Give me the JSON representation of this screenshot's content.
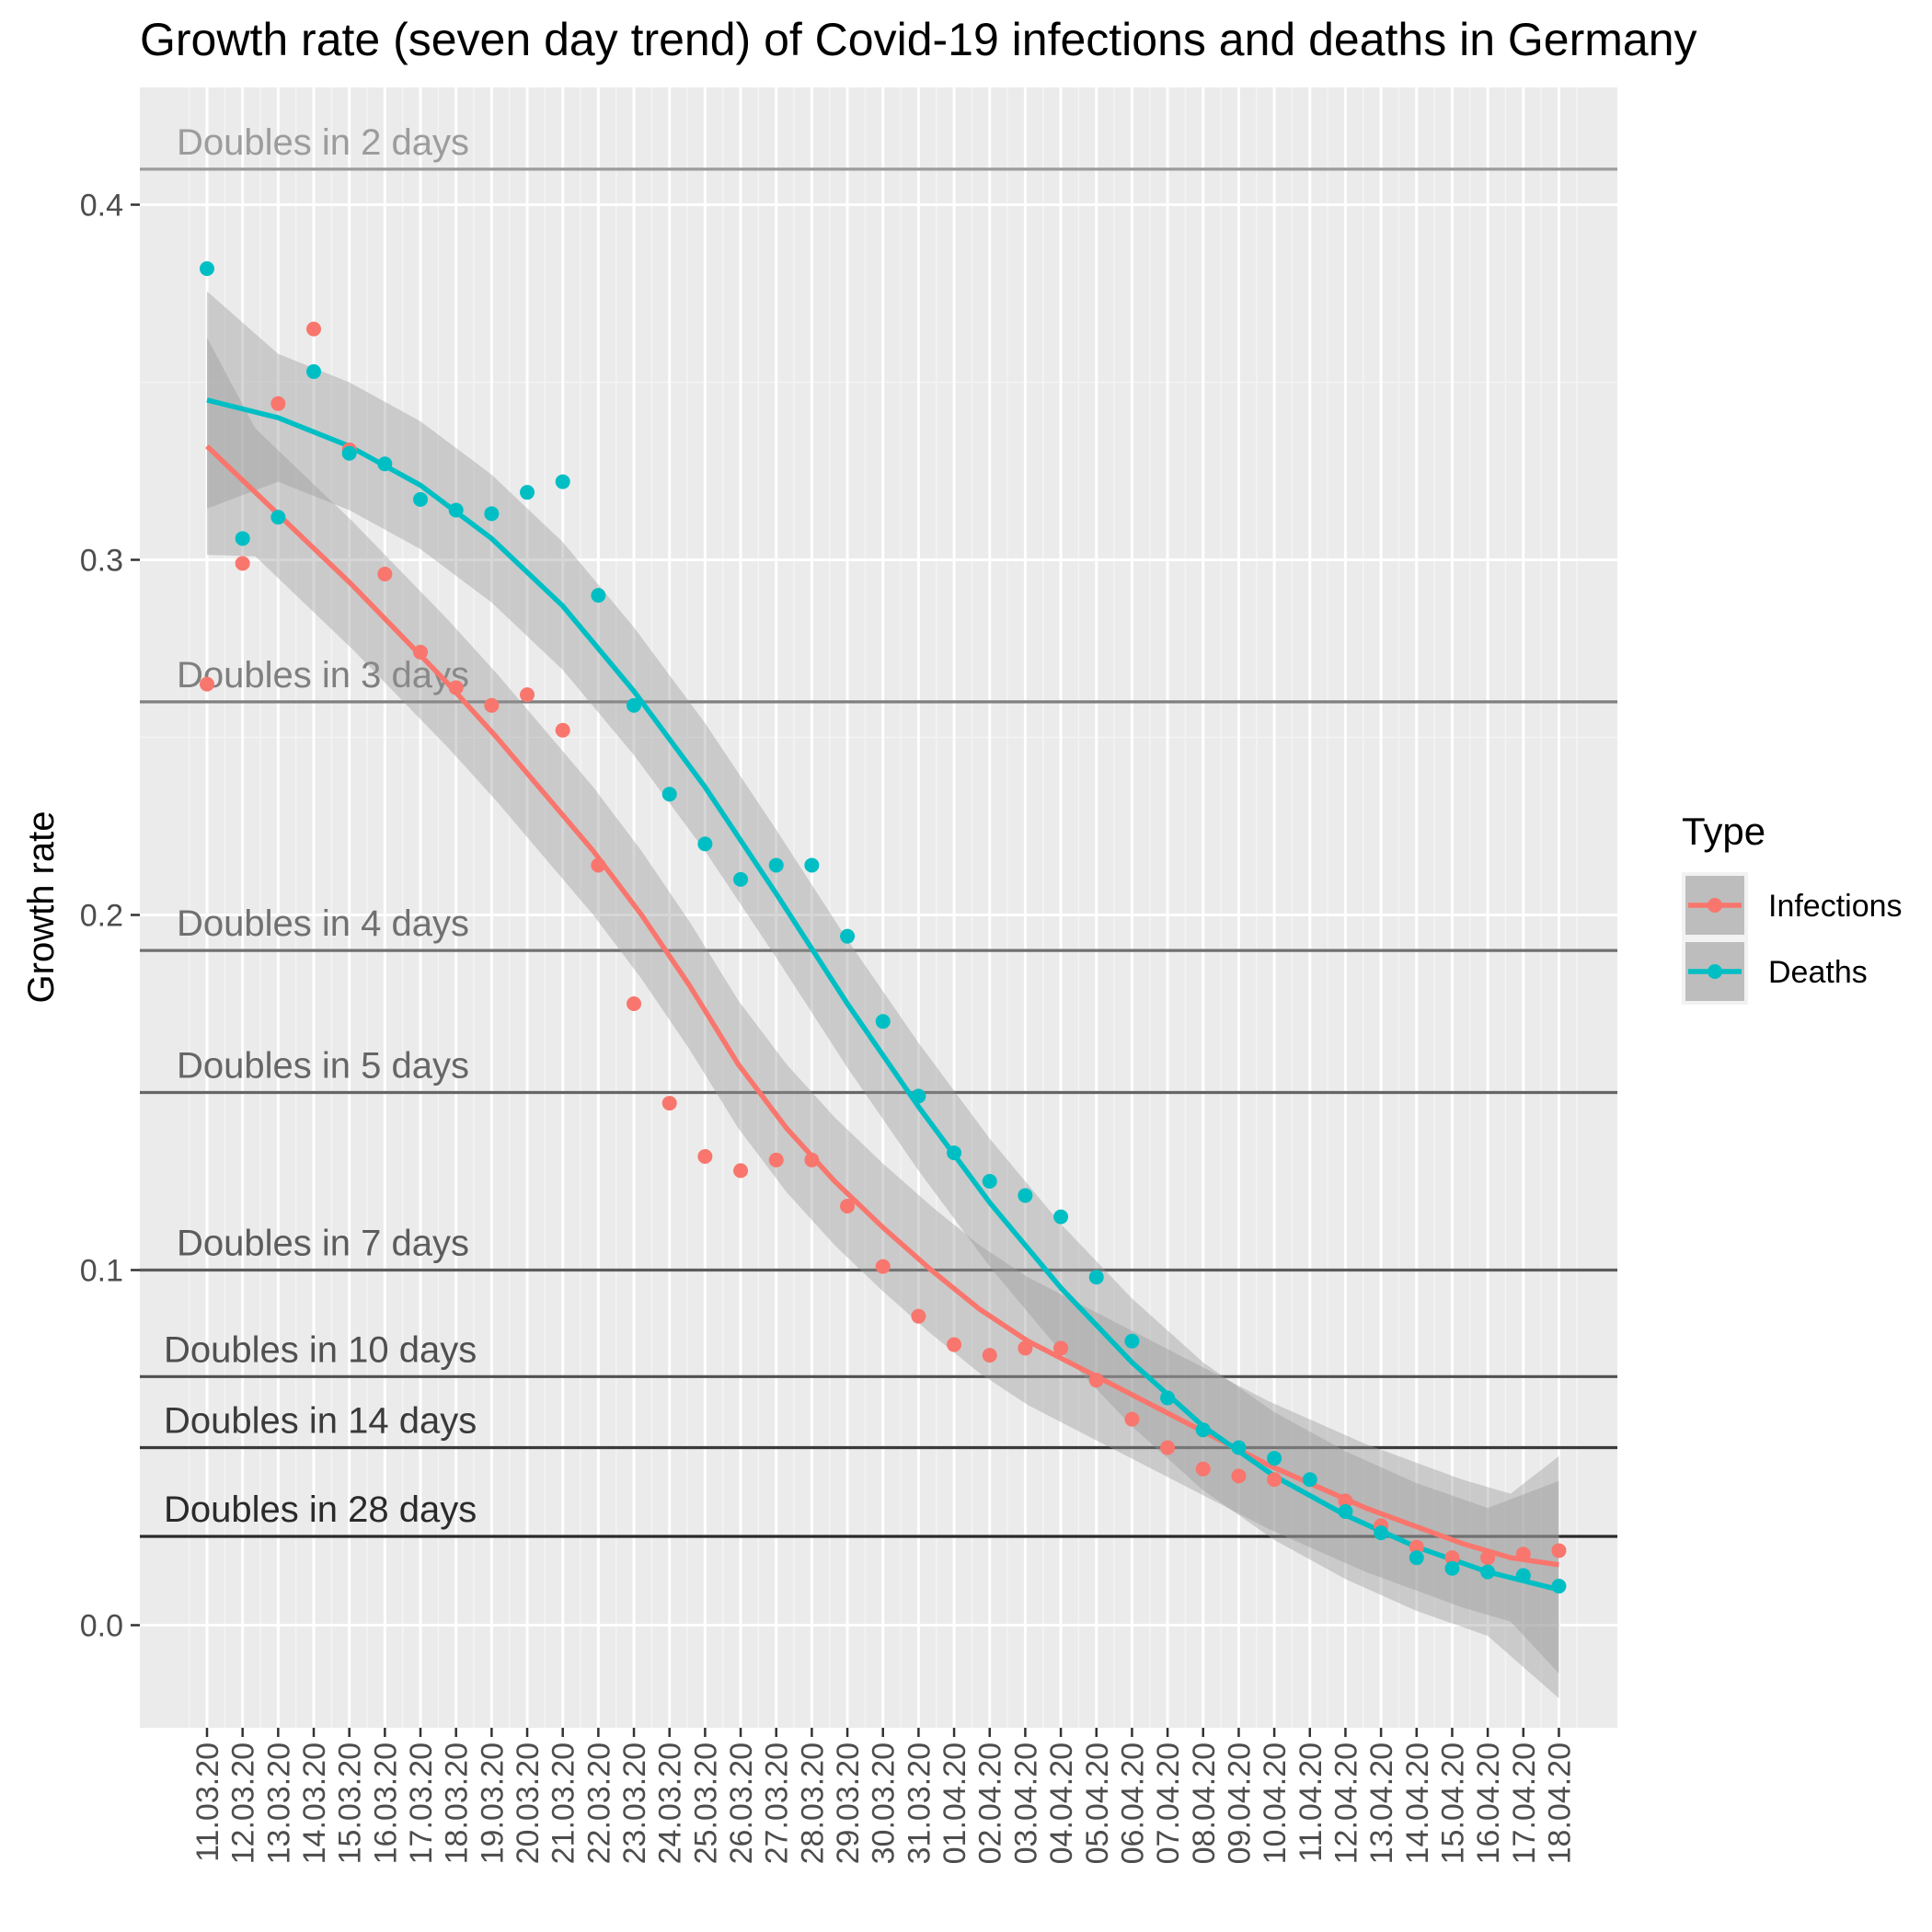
{
  "chart_data": {
    "type": "scatter",
    "title": "Growth rate (seven day trend) of Covid-19 infections and deaths in Germany",
    "xlabel": "",
    "ylabel": "Growth rate",
    "ylim": [
      -0.03,
      0.42
    ],
    "y_ticks": [
      "0.0",
      "0.1",
      "0.2",
      "0.3",
      "0.4"
    ],
    "x_ticks": [
      "11.03.20",
      "12.03.20",
      "13.03.20",
      "14.03.20",
      "15.03.20",
      "16.03.20",
      "17.03.20",
      "18.03.20",
      "19.03.20",
      "20.03.20",
      "21.03.20",
      "22.03.20",
      "23.03.20",
      "24.03.20",
      "25.03.20",
      "26.03.20",
      "27.03.20",
      "28.03.20",
      "29.03.20",
      "30.03.20",
      "31.03.20",
      "01.04.20",
      "02.04.20",
      "03.04.20",
      "04.04.20",
      "05.04.20",
      "06.04.20",
      "07.04.20",
      "08.04.20",
      "09.04.20",
      "10.04.20",
      "11.04.20",
      "12.04.20",
      "13.04.20",
      "14.04.20",
      "15.04.20",
      "16.04.20",
      "17.04.20",
      "18.04.20"
    ],
    "grid": true,
    "legend": {
      "title": "Type",
      "position": "right",
      "entries": [
        "Infections",
        "Deaths"
      ]
    },
    "reference_lines": [
      {
        "label": "Doubles in 2 days",
        "y": 0.41,
        "color": "#9c9c9c"
      },
      {
        "label": "Doubles in 3 days",
        "y": 0.26,
        "color": "#7f7f7f"
      },
      {
        "label": "Doubles in 4 days",
        "y": 0.19,
        "color": "#707070"
      },
      {
        "label": "Doubles in 5 days",
        "y": 0.15,
        "color": "#666666"
      },
      {
        "label": "Doubles in 7 days",
        "y": 0.1,
        "color": "#5c5c5c"
      },
      {
        "label": "Doubles in 10 days",
        "y": 0.07,
        "color": "#505050"
      },
      {
        "label": "Doubles in 14 days",
        "y": 0.05,
        "color": "#3a3a3a"
      },
      {
        "label": "Doubles in 28 days",
        "y": 0.025,
        "color": "#2a2a2a"
      }
    ],
    "series": [
      {
        "name": "Infections",
        "color": "#F8766D",
        "points": [
          0.265,
          0.299,
          0.344,
          0.365,
          0.331,
          0.296,
          0.274,
          0.264,
          0.259,
          0.262,
          0.252,
          0.214,
          0.175,
          0.147,
          0.132,
          0.128,
          0.131,
          0.131,
          0.118,
          0.101,
          0.087,
          0.079,
          0.076,
          0.078,
          0.078,
          0.069,
          0.058,
          0.05,
          0.044,
          0.042,
          0.041,
          null,
          0.035,
          0.028,
          0.022,
          0.019,
          0.019,
          0.02,
          0.021
        ],
        "trend": [
          0.332,
          0.319,
          0.306,
          0.293,
          0.279,
          0.265,
          0.25,
          0.234,
          0.218,
          0.2,
          0.18,
          0.158,
          0.14,
          0.125,
          0.112,
          0.1,
          0.089,
          0.08,
          0.073,
          0.066,
          0.059,
          0.052,
          0.045,
          0.039,
          0.033,
          0.028,
          0.023,
          0.019,
          0.017
        ],
        "trend_x_start": 0,
        "trend_x_end": 38
      },
      {
        "name": "Deaths",
        "color": "#00BFC4",
        "points": [
          0.382,
          0.306,
          0.312,
          0.353,
          0.33,
          0.327,
          0.317,
          0.314,
          0.313,
          0.319,
          0.322,
          0.29,
          0.259,
          0.234,
          0.22,
          0.21,
          0.214,
          0.214,
          0.194,
          0.17,
          0.149,
          0.133,
          0.125,
          0.121,
          0.115,
          0.098,
          0.08,
          0.064,
          0.055,
          0.05,
          0.047,
          0.041,
          0.032,
          0.026,
          0.019,
          0.016,
          0.015,
          0.014,
          0.011
        ],
        "trend": [
          0.345,
          0.34,
          0.332,
          0.321,
          0.306,
          0.287,
          0.263,
          0.236,
          0.206,
          0.175,
          0.146,
          0.119,
          0.095,
          0.074,
          0.056,
          0.042,
          0.031,
          0.022,
          0.015,
          0.01
        ],
        "trend_x_start": 0,
        "trend_x_end": 38
      }
    ]
  }
}
